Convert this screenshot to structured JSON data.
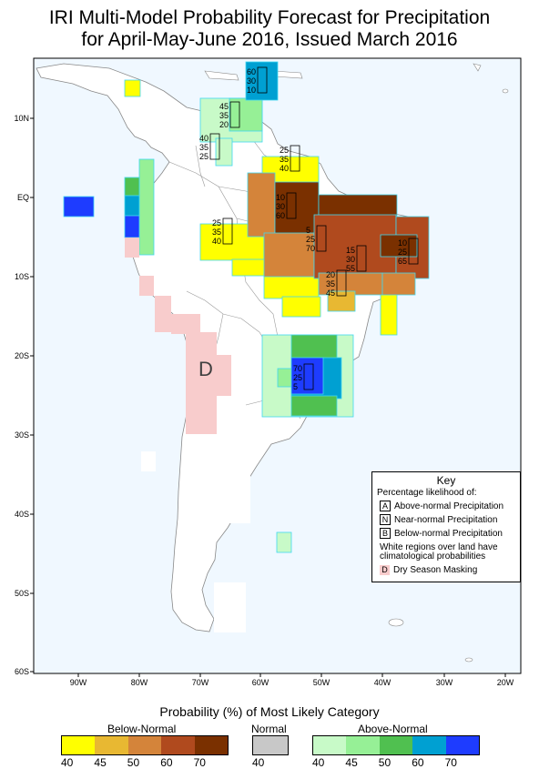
{
  "title": {
    "line1": "IRI Multi-Model Probability Forecast for Precipitation",
    "line2": "for April-May-June 2016, Issued March 2016"
  },
  "axes": {
    "lat_labels": [
      "10N",
      "EQ",
      "10S",
      "20S",
      "30S",
      "40S",
      "50S",
      "60S"
    ],
    "lon_labels": [
      "90W",
      "80W",
      "70W",
      "60W",
      "50W",
      "40W",
      "30W",
      "20W"
    ]
  },
  "map_annotations": {
    "dry_season_marker": "D",
    "boxes": [
      {
        "a": "60",
        "n": "30",
        "b": "10"
      },
      {
        "a": "45",
        "n": "35",
        "b": "20"
      },
      {
        "a": "40",
        "n": "35",
        "b": "25"
      },
      {
        "a": "25",
        "n": "35",
        "b": "40"
      },
      {
        "a": "10",
        "n": "30",
        "b": "60"
      },
      {
        "a": "25",
        "n": "35",
        "b": "40"
      },
      {
        "a": "5",
        "n": "25",
        "b": "70"
      },
      {
        "a": "15",
        "n": "30",
        "b": "55"
      },
      {
        "a": "10",
        "n": "25",
        "b": "65"
      },
      {
        "a": "20",
        "n": "35",
        "b": "45"
      },
      {
        "a": "70",
        "n": "25",
        "b": "5"
      }
    ]
  },
  "key": {
    "title": "Key",
    "subtitle": "Percentage likelihood of:",
    "rows": [
      {
        "letter": "A",
        "label": "Above-normal Precipitation"
      },
      {
        "letter": "N",
        "label": "Near-normal Precipitation"
      },
      {
        "letter": "B",
        "label": "Below-normal Precipitation"
      }
    ],
    "note": "White regions over land have climatological probabilities",
    "dry_letter": "D",
    "dry_label": "Dry Season Masking"
  },
  "colorbar": {
    "title": "Probability (%) of Most Likely Category",
    "groups": [
      {
        "label": "Below-Normal",
        "ticks": [
          "40",
          "45",
          "50",
          "60",
          "70"
        ],
        "colors": [
          "#ffff00",
          "#e8b832",
          "#d4843a",
          "#b04a1e",
          "#7a3000"
        ]
      },
      {
        "label": "Normal",
        "ticks": [
          "40"
        ],
        "colors": [
          "#c8c8c8"
        ]
      },
      {
        "label": "Above-Normal",
        "ticks": [
          "40",
          "45",
          "50",
          "60",
          "70"
        ],
        "colors": [
          "#c8fac8",
          "#96f096",
          "#50c050",
          "#00a0d2",
          "#1e3cff"
        ]
      }
    ]
  },
  "colors": {
    "ocean": "#f0f8ff",
    "land": "#ffffff",
    "dry": "#f8cccc",
    "cell_border": "#40d8f0"
  }
}
